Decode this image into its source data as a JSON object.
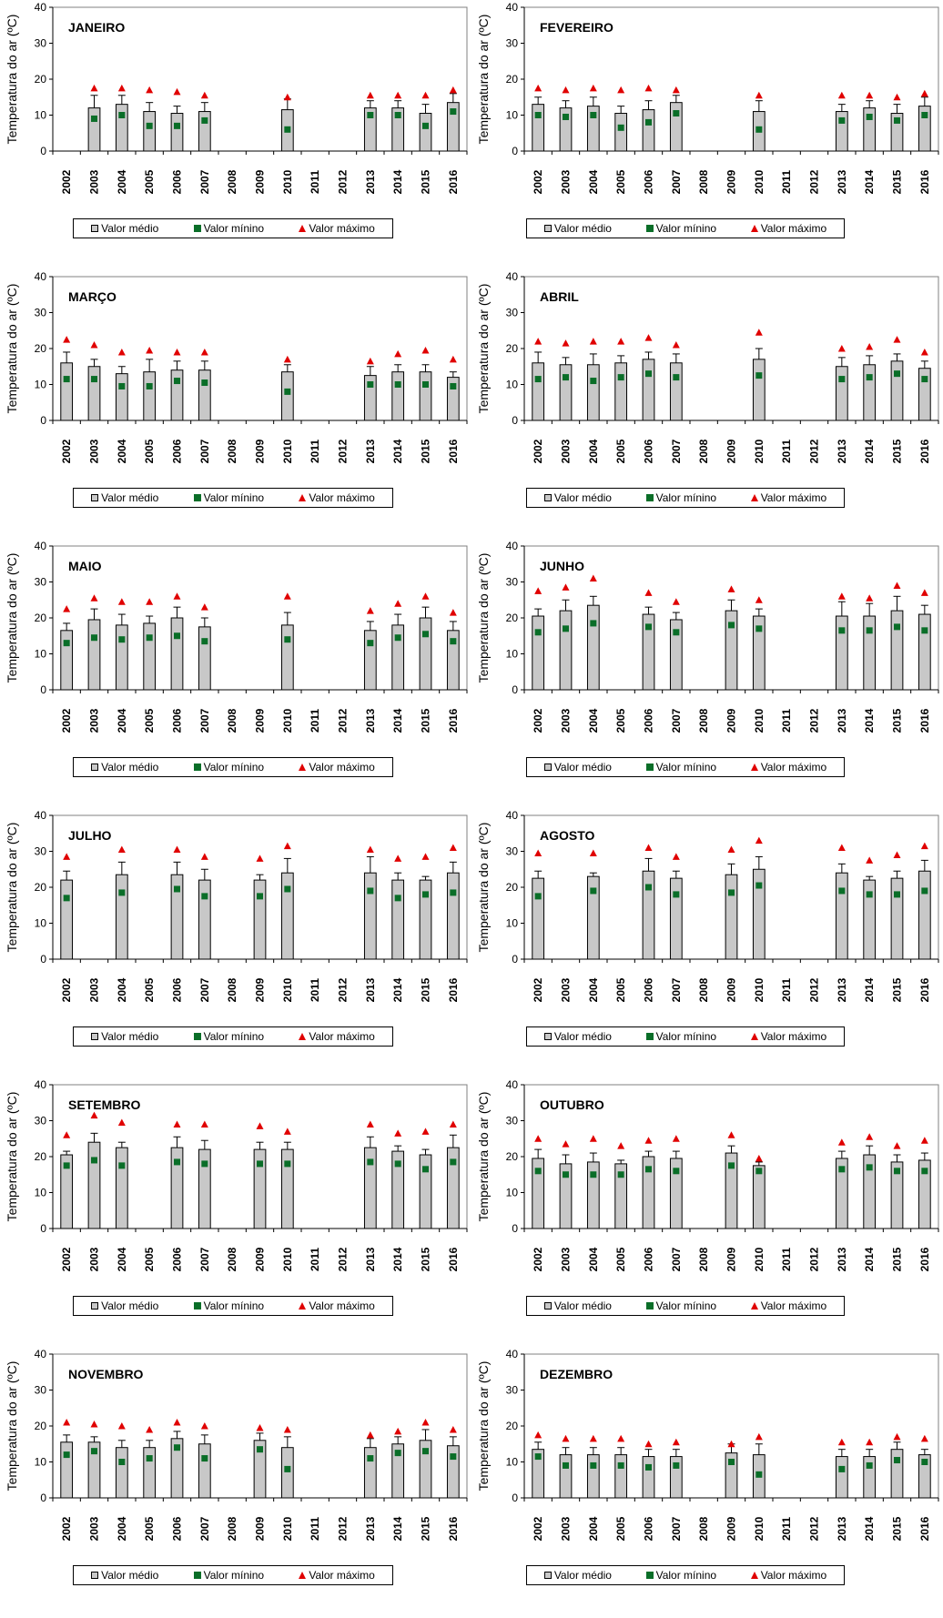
{
  "legend": {
    "mean": "Valor médio",
    "min": "Valor mínino",
    "max": "Valor máximo"
  },
  "colors": {
    "bar_fill": "#c8c8c8",
    "min_marker": "#0a6e28",
    "max_marker": "#e00000"
  },
  "chart_data": [
    {
      "type": "bar",
      "title": "JANEIRO",
      "ylabel": "Temperatura do ar (ºC)",
      "ylim": [
        0,
        40
      ],
      "yticks": [
        0,
        10,
        20,
        30,
        40
      ],
      "categories": [
        "2002",
        "2003",
        "2004",
        "2005",
        "2006",
        "2007",
        "2008",
        "2009",
        "2010",
        "2011",
        "2012",
        "2013",
        "2014",
        "2015",
        "2016"
      ],
      "mean": [
        null,
        12,
        13,
        11,
        10.5,
        11,
        null,
        null,
        11.5,
        null,
        null,
        12,
        12,
        10.5,
        13.5
      ],
      "err": [
        null,
        3.5,
        2.5,
        2.5,
        2,
        2.5,
        null,
        null,
        3,
        null,
        null,
        2,
        2,
        2.5,
        2.5
      ],
      "min": [
        null,
        9,
        10,
        7,
        7,
        8.5,
        null,
        null,
        6,
        null,
        null,
        10,
        10,
        7,
        11
      ],
      "max": [
        null,
        17.5,
        17.5,
        17,
        16.5,
        15.5,
        null,
        null,
        15,
        null,
        null,
        15.5,
        15.5,
        15.5,
        17
      ]
    },
    {
      "type": "bar",
      "title": "FEVEREIRO",
      "ylabel": "Temperatura do ar (ºC)",
      "ylim": [
        0,
        40
      ],
      "yticks": [
        0,
        10,
        20,
        30,
        40
      ],
      "categories": [
        "2002",
        "2003",
        "2004",
        "2005",
        "2006",
        "2007",
        "2008",
        "2009",
        "2010",
        "2011",
        "2012",
        "2013",
        "2014",
        "2015",
        "2016"
      ],
      "mean": [
        13,
        12,
        12.5,
        10.5,
        11.5,
        13.5,
        null,
        null,
        11,
        null,
        null,
        11,
        12,
        10.5,
        12.5
      ],
      "err": [
        2,
        2,
        2.5,
        2,
        2.5,
        2,
        null,
        null,
        3,
        null,
        null,
        2,
        2,
        2.5,
        2.5
      ],
      "min": [
        10,
        9.5,
        10,
        6.5,
        8,
        10.5,
        null,
        null,
        6,
        null,
        null,
        8.5,
        9.5,
        8.5,
        10
      ],
      "max": [
        17.5,
        17,
        17.5,
        17,
        17.5,
        17,
        null,
        null,
        15.5,
        null,
        null,
        15.5,
        15.5,
        15,
        16
      ]
    },
    {
      "type": "bar",
      "title": "MARÇO",
      "ylabel": "Temperatura do ar (ºC)",
      "ylim": [
        0,
        40
      ],
      "yticks": [
        0,
        10,
        20,
        30,
        40
      ],
      "categories": [
        "2002",
        "2003",
        "2004",
        "2005",
        "2006",
        "2007",
        "2008",
        "2009",
        "2010",
        "2011",
        "2012",
        "2013",
        "2014",
        "2015",
        "2016"
      ],
      "mean": [
        16,
        15,
        13,
        13.5,
        14,
        14,
        null,
        null,
        13.5,
        null,
        null,
        12.5,
        13.5,
        13.5,
        12
      ],
      "err": [
        3,
        2,
        2,
        3.5,
        2.5,
        2.5,
        null,
        null,
        2,
        null,
        null,
        2.5,
        2,
        2,
        1.5
      ],
      "min": [
        11.5,
        11.5,
        9.5,
        9.5,
        11,
        10.5,
        null,
        null,
        8,
        null,
        null,
        10,
        10,
        10,
        9.5
      ],
      "max": [
        22.5,
        21,
        19,
        19.5,
        19,
        19,
        null,
        null,
        17,
        null,
        null,
        16.5,
        18.5,
        19.5,
        17
      ]
    },
    {
      "type": "bar",
      "title": "ABRIL",
      "ylabel": "Temperatura do ar (ºC)",
      "ylim": [
        0,
        40
      ],
      "yticks": [
        0,
        10,
        20,
        30,
        40
      ],
      "categories": [
        "2002",
        "2003",
        "2004",
        "2005",
        "2006",
        "2007",
        "2008",
        "2009",
        "2010",
        "2011",
        "2012",
        "2013",
        "2014",
        "2015",
        "2016"
      ],
      "mean": [
        16,
        15.5,
        15.5,
        16,
        17,
        16,
        null,
        null,
        17,
        null,
        null,
        15,
        15.5,
        16.5,
        14.5
      ],
      "err": [
        3,
        2,
        3,
        2,
        2,
        2.5,
        null,
        null,
        3,
        null,
        null,
        2.5,
        2.5,
        2,
        2
      ],
      "min": [
        11.5,
        12,
        11,
        12,
        13,
        12,
        null,
        null,
        12.5,
        null,
        null,
        11.5,
        12,
        13,
        11.5
      ],
      "max": [
        22,
        21.5,
        22,
        22,
        23,
        21,
        null,
        null,
        24.5,
        null,
        null,
        20,
        20.5,
        22.5,
        19
      ]
    },
    {
      "type": "bar",
      "title": "MAIO",
      "ylabel": "Temperatura do ar (ºC)",
      "ylim": [
        0,
        40
      ],
      "yticks": [
        0,
        10,
        20,
        30,
        40
      ],
      "categories": [
        "2002",
        "2003",
        "2004",
        "2005",
        "2006",
        "2007",
        "2008",
        "2009",
        "2010",
        "2011",
        "2012",
        "2013",
        "2014",
        "2015",
        "2016"
      ],
      "mean": [
        16.5,
        19.5,
        18,
        18.5,
        20,
        17.5,
        null,
        null,
        18,
        null,
        null,
        16.5,
        18,
        20,
        16.5
      ],
      "err": [
        2,
        3,
        3,
        2,
        3,
        2.5,
        null,
        null,
        3.5,
        null,
        null,
        2.5,
        3,
        3,
        2.5
      ],
      "min": [
        13,
        14.5,
        14,
        14.5,
        15,
        13.5,
        null,
        null,
        14,
        null,
        null,
        13,
        14.5,
        15.5,
        13.5
      ],
      "max": [
        22.5,
        25.5,
        24.5,
        24.5,
        26,
        23,
        null,
        null,
        26,
        null,
        null,
        22,
        24,
        26,
        21.5
      ]
    },
    {
      "type": "bar",
      "title": "JUNHO",
      "ylabel": "Temperatura do ar (ºC)",
      "ylim": [
        0,
        40
      ],
      "yticks": [
        0,
        10,
        20,
        30,
        40
      ],
      "categories": [
        "2002",
        "2003",
        "2004",
        "2005",
        "2006",
        "2007",
        "2008",
        "2009",
        "2010",
        "2011",
        "2012",
        "2013",
        "2014",
        "2015",
        "2016"
      ],
      "mean": [
        20.5,
        22,
        23.5,
        null,
        21,
        19.5,
        null,
        22,
        20.5,
        null,
        null,
        20.5,
        20.5,
        22,
        21
      ],
      "err": [
        2,
        3,
        2.5,
        null,
        2,
        2,
        null,
        3,
        2,
        null,
        null,
        4,
        3.5,
        4,
        2.5
      ],
      "min": [
        16,
        17,
        18.5,
        null,
        17.5,
        16,
        null,
        18,
        17,
        null,
        null,
        16.5,
        16.5,
        17.5,
        16.5
      ],
      "max": [
        27.5,
        28.5,
        31,
        null,
        27,
        24.5,
        null,
        28,
        25,
        null,
        null,
        26,
        25.5,
        29,
        27
      ]
    },
    {
      "type": "bar",
      "title": "JULHO",
      "ylabel": "Temperatura do ar (ºC)",
      "ylim": [
        0,
        40
      ],
      "yticks": [
        0,
        10,
        20,
        30,
        40
      ],
      "categories": [
        "2002",
        "2003",
        "2004",
        "2005",
        "2006",
        "2007",
        "2008",
        "2009",
        "2010",
        "2011",
        "2012",
        "2013",
        "2014",
        "2015",
        "2016"
      ],
      "mean": [
        22,
        null,
        23.5,
        null,
        23.5,
        22,
        null,
        22,
        24,
        null,
        null,
        24,
        22,
        22,
        24
      ],
      "err": [
        2.5,
        null,
        3.5,
        null,
        3.5,
        3,
        null,
        1.5,
        4,
        null,
        null,
        4.5,
        2,
        1,
        3
      ],
      "min": [
        17,
        null,
        18.5,
        null,
        19.5,
        17.5,
        null,
        17.5,
        19.5,
        null,
        null,
        19,
        17,
        18,
        18.5
      ],
      "max": [
        28.5,
        null,
        30.5,
        null,
        30.5,
        28.5,
        null,
        28,
        31.5,
        null,
        null,
        30.5,
        28,
        28.5,
        31
      ]
    },
    {
      "type": "bar",
      "title": "AGOSTO",
      "ylabel": "Temperatura do ar (ºC)",
      "ylim": [
        0,
        40
      ],
      "yticks": [
        0,
        10,
        20,
        30,
        40
      ],
      "categories": [
        "2002",
        "2003",
        "2004",
        "2005",
        "2006",
        "2007",
        "2008",
        "2009",
        "2010",
        "2011",
        "2012",
        "2013",
        "2014",
        "2015",
        "2016"
      ],
      "mean": [
        22.5,
        null,
        23,
        null,
        24.5,
        22.5,
        null,
        23.5,
        25,
        null,
        null,
        24,
        22,
        22.5,
        24.5
      ],
      "err": [
        2,
        null,
        1,
        null,
        3.5,
        2,
        null,
        3,
        3.5,
        null,
        null,
        2.5,
        1,
        2,
        3
      ],
      "min": [
        17.5,
        null,
        19,
        null,
        20,
        18,
        null,
        18.5,
        20.5,
        null,
        null,
        19,
        18,
        18,
        19
      ],
      "max": [
        29.5,
        null,
        29.5,
        null,
        31,
        28.5,
        null,
        30.5,
        33,
        null,
        null,
        31,
        27.5,
        29,
        31.5
      ]
    },
    {
      "type": "bar",
      "title": "SETEMBRO",
      "ylabel": "Temperatura do ar (ºC)",
      "ylim": [
        0,
        40
      ],
      "yticks": [
        0,
        10,
        20,
        30,
        40
      ],
      "categories": [
        "2002",
        "2003",
        "2004",
        "2005",
        "2006",
        "2007",
        "2008",
        "2009",
        "2010",
        "2011",
        "2012",
        "2013",
        "2014",
        "2015",
        "2016"
      ],
      "mean": [
        20.5,
        24,
        22.5,
        null,
        22.5,
        22,
        null,
        22,
        22,
        null,
        null,
        22.5,
        21.5,
        20.5,
        22.5
      ],
      "err": [
        1,
        2.5,
        1.5,
        null,
        3,
        2.5,
        null,
        2,
        2,
        null,
        null,
        3,
        1.5,
        1.5,
        3.5
      ],
      "min": [
        17.5,
        19,
        17.5,
        null,
        18.5,
        18,
        null,
        18,
        18,
        null,
        null,
        18.5,
        18,
        16.5,
        18.5
      ],
      "max": [
        26,
        31.5,
        29.5,
        null,
        29,
        29,
        null,
        28.5,
        27,
        null,
        null,
        29,
        26.5,
        27,
        29
      ]
    },
    {
      "type": "bar",
      "title": "OUTUBRO",
      "ylabel": "Temperatura do ar (ºC)",
      "ylim": [
        0,
        40
      ],
      "yticks": [
        0,
        10,
        20,
        30,
        40
      ],
      "categories": [
        "2002",
        "2003",
        "2004",
        "2005",
        "2006",
        "2007",
        "2008",
        "2009",
        "2010",
        "2011",
        "2012",
        "2013",
        "2014",
        "2015",
        "2016"
      ],
      "mean": [
        19.5,
        18,
        18.5,
        18,
        20,
        19.5,
        null,
        21,
        17.5,
        null,
        null,
        19.5,
        20.5,
        18.5,
        19
      ],
      "err": [
        2.5,
        2.5,
        2.5,
        1,
        1.5,
        2,
        null,
        2,
        1,
        null,
        null,
        2,
        2.5,
        2,
        2
      ],
      "min": [
        16,
        15,
        15,
        15,
        16.5,
        16,
        null,
        17.5,
        16,
        null,
        null,
        16.5,
        17,
        16,
        16
      ],
      "max": [
        25,
        23.5,
        25,
        23,
        24.5,
        25,
        null,
        26,
        19.5,
        null,
        null,
        24,
        25.5,
        23,
        24.5
      ]
    },
    {
      "type": "bar",
      "title": "NOVEMBRO",
      "ylabel": "Temperatura do ar (ºC)",
      "ylim": [
        0,
        40
      ],
      "yticks": [
        0,
        10,
        20,
        30,
        40
      ],
      "categories": [
        "2002",
        "2003",
        "2004",
        "2005",
        "2006",
        "2007",
        "2008",
        "2009",
        "2010",
        "2011",
        "2012",
        "2013",
        "2014",
        "2015",
        "2016"
      ],
      "mean": [
        15.5,
        15.5,
        14,
        14,
        16.5,
        15,
        null,
        16,
        14,
        null,
        null,
        14,
        15,
        16,
        14.5
      ],
      "err": [
        2,
        1.5,
        2,
        2,
        2,
        2.5,
        null,
        2,
        3,
        null,
        null,
        2.5,
        2,
        3,
        2.5
      ],
      "min": [
        12,
        13,
        10,
        11,
        14,
        11,
        null,
        13.5,
        8,
        null,
        null,
        11,
        12.5,
        13,
        11.5
      ],
      "max": [
        21,
        20.5,
        20,
        19,
        21,
        20,
        null,
        19.5,
        19,
        null,
        null,
        17.5,
        18.5,
        21,
        19
      ]
    },
    {
      "type": "bar",
      "title": "DEZEMBRO",
      "ylabel": "Temperatura do ar (ºC)",
      "ylim": [
        0,
        40
      ],
      "yticks": [
        0,
        10,
        20,
        30,
        40
      ],
      "categories": [
        "2002",
        "2003",
        "2004",
        "2005",
        "2006",
        "2007",
        "2008",
        "2009",
        "2010",
        "2011",
        "2012",
        "2013",
        "2014",
        "2015",
        "2016"
      ],
      "mean": [
        13.5,
        12,
        12,
        12,
        11.5,
        11.5,
        null,
        12.5,
        12,
        null,
        null,
        11.5,
        11.5,
        13.5,
        12
      ],
      "err": [
        2,
        2,
        2,
        2,
        2,
        2,
        null,
        2.5,
        3,
        null,
        null,
        2,
        2,
        2,
        1.5
      ],
      "min": [
        11.5,
        9,
        9,
        9,
        8.5,
        9,
        null,
        10,
        6.5,
        null,
        null,
        8,
        9,
        10.5,
        10
      ],
      "max": [
        17.5,
        16.5,
        16.5,
        16.5,
        15,
        15.5,
        null,
        15,
        17,
        null,
        null,
        15.5,
        15.5,
        17,
        16.5
      ]
    }
  ]
}
